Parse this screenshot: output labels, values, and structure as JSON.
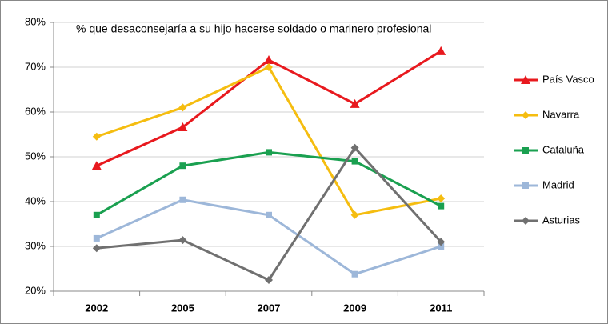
{
  "chart_data": {
    "type": "line",
    "title": "% que desaconsejaría a su hijo hacerse soldado o marinero profesional",
    "categories": [
      "2002",
      "2005",
      "2007",
      "2009",
      "2011"
    ],
    "series": [
      {
        "name": "País Vasco",
        "color": "#e8191e",
        "marker": "triangle",
        "values": [
          48,
          56.6,
          71.6,
          61.8,
          73.6
        ]
      },
      {
        "name": "Navarra",
        "color": "#f5bd10",
        "marker": "diamond",
        "values": [
          54.5,
          61,
          70,
          37,
          40.7
        ]
      },
      {
        "name": "Cataluña",
        "color": "#1aa050",
        "marker": "square",
        "values": [
          37,
          48,
          51,
          49,
          39
        ]
      },
      {
        "name": "Madrid",
        "color": "#9db7d9",
        "marker": "square",
        "values": [
          31.8,
          40.4,
          37,
          23.8,
          30
        ]
      },
      {
        "name": "Asturias",
        "color": "#707070",
        "marker": "diamond",
        "values": [
          29.6,
          31.4,
          22.5,
          52,
          31
        ]
      }
    ],
    "ylim": [
      20,
      80
    ],
    "yticks": [
      {
        "value": 20,
        "label": "20%"
      },
      {
        "value": 30,
        "label": "30%"
      },
      {
        "value": 40,
        "label": "40%"
      },
      {
        "value": 50,
        "label": "50%"
      },
      {
        "value": 60,
        "label": "60%"
      },
      {
        "value": 70,
        "label": "70%"
      },
      {
        "value": 80,
        "label": "80%"
      }
    ],
    "grid": true,
    "legend": "right"
  }
}
